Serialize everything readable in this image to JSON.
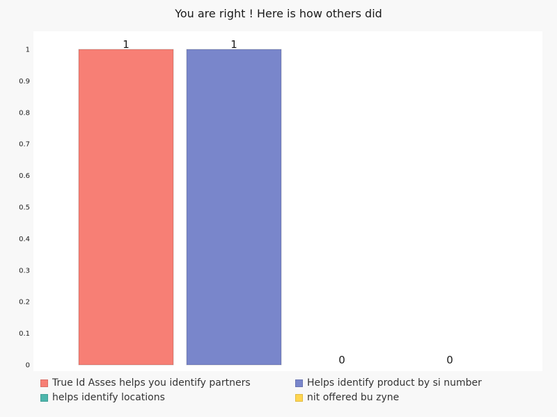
{
  "chart_data": {
    "type": "bar",
    "title": "You are right ! Here is how others did",
    "categories": [
      "True Id Asses helps you identify partners",
      "Helps identify product by si number",
      "helps identify locations",
      "nit offered bu zyne"
    ],
    "values": [
      1,
      1,
      0,
      0
    ],
    "data_labels": [
      "1",
      "1",
      "0",
      "0"
    ],
    "colors": [
      "#f77f75",
      "#7986cb",
      "#4db6ac",
      "#ffd54f"
    ],
    "ylim": [
      0,
      1
    ],
    "yticks": [
      "0",
      "0.1",
      "0.2",
      "0.3",
      "0.4",
      "0.5",
      "0.6",
      "0.7",
      "0.8",
      "0.9",
      "1"
    ],
    "xlabel": "",
    "ylabel": "",
    "grid": false,
    "legend_position": "bottom"
  }
}
